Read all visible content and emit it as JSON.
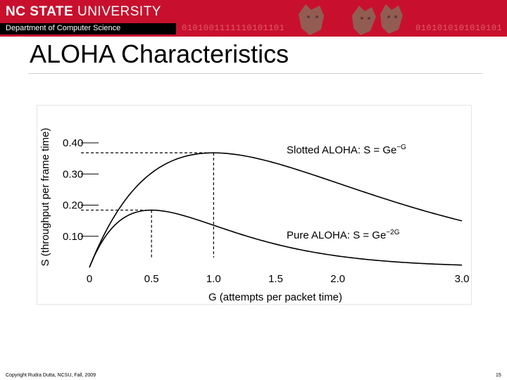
{
  "header": {
    "logo_bold": "NC STATE",
    "logo_rest": " UNIVERSITY",
    "department": "Department of Computer Science",
    "binary_left": "0101001111110101101",
    "binary_right": "0101010101010101"
  },
  "slide": {
    "title": "ALOHA Characteristics"
  },
  "chart_data": {
    "type": "line",
    "title": "",
    "xlabel": "G (attempts per packet time)",
    "ylabel": "S (throughput per frame time)",
    "xlim": [
      0,
      3.0
    ],
    "ylim": [
      0,
      0.48
    ],
    "x_ticks": [
      0,
      0.5,
      1.0,
      1.5,
      2.0,
      3.0
    ],
    "x_tick_labels": [
      "0",
      "0.5",
      "1.0",
      "1.5",
      "2.0",
      "3.0"
    ],
    "y_ticks": [
      0.1,
      0.2,
      0.3,
      0.4
    ],
    "y_tick_labels": [
      "0.10",
      "0.20",
      "0.30",
      "0.40"
    ],
    "grid": false,
    "legend": "none",
    "series": [
      {
        "label_text": "Slotted ALOHA: S = Ge",
        "label_exponent": "−G",
        "formula": "S = G·e^(-G)",
        "peak": {
          "x": 1.0,
          "y": 0.368
        },
        "color": "#000000"
      },
      {
        "label_text": "Pure ALOHA: S = Ge",
        "label_exponent": "−2G",
        "formula": "S = G·e^(-2G)",
        "peak": {
          "x": 0.5,
          "y": 0.184
        },
        "color": "#000000"
      }
    ]
  },
  "footer": {
    "copyright": "Copyright Rudra Dutta, NCSU, Fall, 2009",
    "page_number": "15"
  }
}
